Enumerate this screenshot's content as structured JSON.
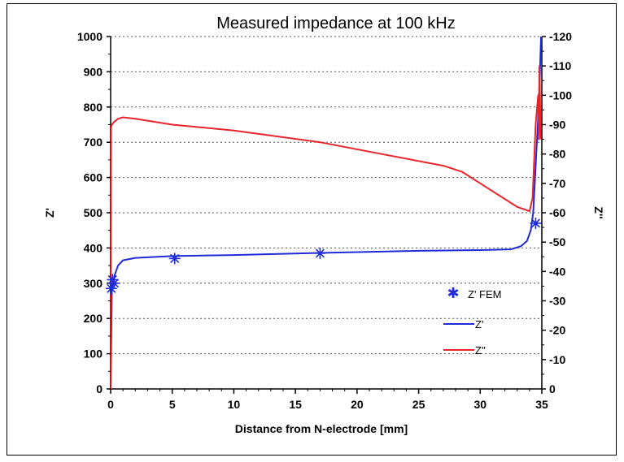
{
  "chart_data": {
    "type": "line",
    "title": "Measured impedance at 100 kHz",
    "xlabel": "Distance from N-electrode [mm]",
    "ylabel": "Z'",
    "y2label": "Z''",
    "xlim": [
      0,
      35
    ],
    "ylim": [
      0,
      1000
    ],
    "y2lim": [
      0,
      -120
    ],
    "xticks": [
      0,
      5,
      10,
      15,
      20,
      25,
      30,
      35
    ],
    "yticks": [
      0,
      100,
      200,
      300,
      400,
      500,
      600,
      700,
      800,
      900,
      1000
    ],
    "y2ticks": [
      0,
      -10,
      -20,
      -30,
      -40,
      -50,
      -60,
      -70,
      -80,
      -90,
      -100,
      -110,
      -120
    ],
    "grid": "horizontal dotted",
    "legend_position": "right",
    "series": [
      {
        "name": "Z' FEM",
        "kind": "markers",
        "axis": "left",
        "color": "#1f2bd6",
        "x": [
          0.05,
          0.15,
          0.3,
          5.2,
          17.0,
          34.5
        ],
        "y": [
          285,
          310,
          300,
          370,
          385,
          470
        ]
      },
      {
        "name": "Z'",
        "kind": "line",
        "axis": "left",
        "color": "#1f2bd6",
        "x": [
          0,
          0.1,
          0.3,
          0.6,
          1,
          2,
          5,
          10,
          17,
          25,
          30,
          32.5,
          33.3,
          33.8,
          34.1,
          34.3,
          34.45,
          34.6,
          34.75,
          34.85,
          34.95
        ],
        "y": [
          0,
          280,
          320,
          350,
          365,
          372,
          377,
          380,
          386,
          392,
          394,
          396,
          405,
          420,
          450,
          500,
          600,
          700,
          800,
          900,
          1010
        ]
      },
      {
        "name": "Z''",
        "kind": "line",
        "axis": "right",
        "color": "#e8242b",
        "x": [
          0,
          0.03,
          0.1,
          0.3,
          0.6,
          1,
          2,
          5,
          10,
          17,
          22,
          27,
          28.5,
          30,
          31.5,
          33,
          33.7,
          34,
          34.25,
          34.4,
          34.5,
          34.6,
          34.7,
          34.75,
          34.8,
          34.85,
          34.9
        ],
        "y": [
          0,
          -89,
          -90,
          -91,
          -92,
          -92.5,
          -92,
          -90,
          -88,
          -84,
          -80,
          -76,
          -74,
          -70,
          -66,
          -62,
          -61,
          -60.5,
          -65,
          -80,
          -90,
          -95,
          -100,
          -85,
          -110,
          -100,
          -85
        ]
      }
    ]
  },
  "legend": {
    "items": [
      {
        "label": "Z' FEM",
        "color": "#1f2bd6"
      },
      {
        "label": "Z'",
        "color": "#1f2bd6"
      },
      {
        "label": "Z''",
        "color": "#e8242b"
      }
    ]
  }
}
